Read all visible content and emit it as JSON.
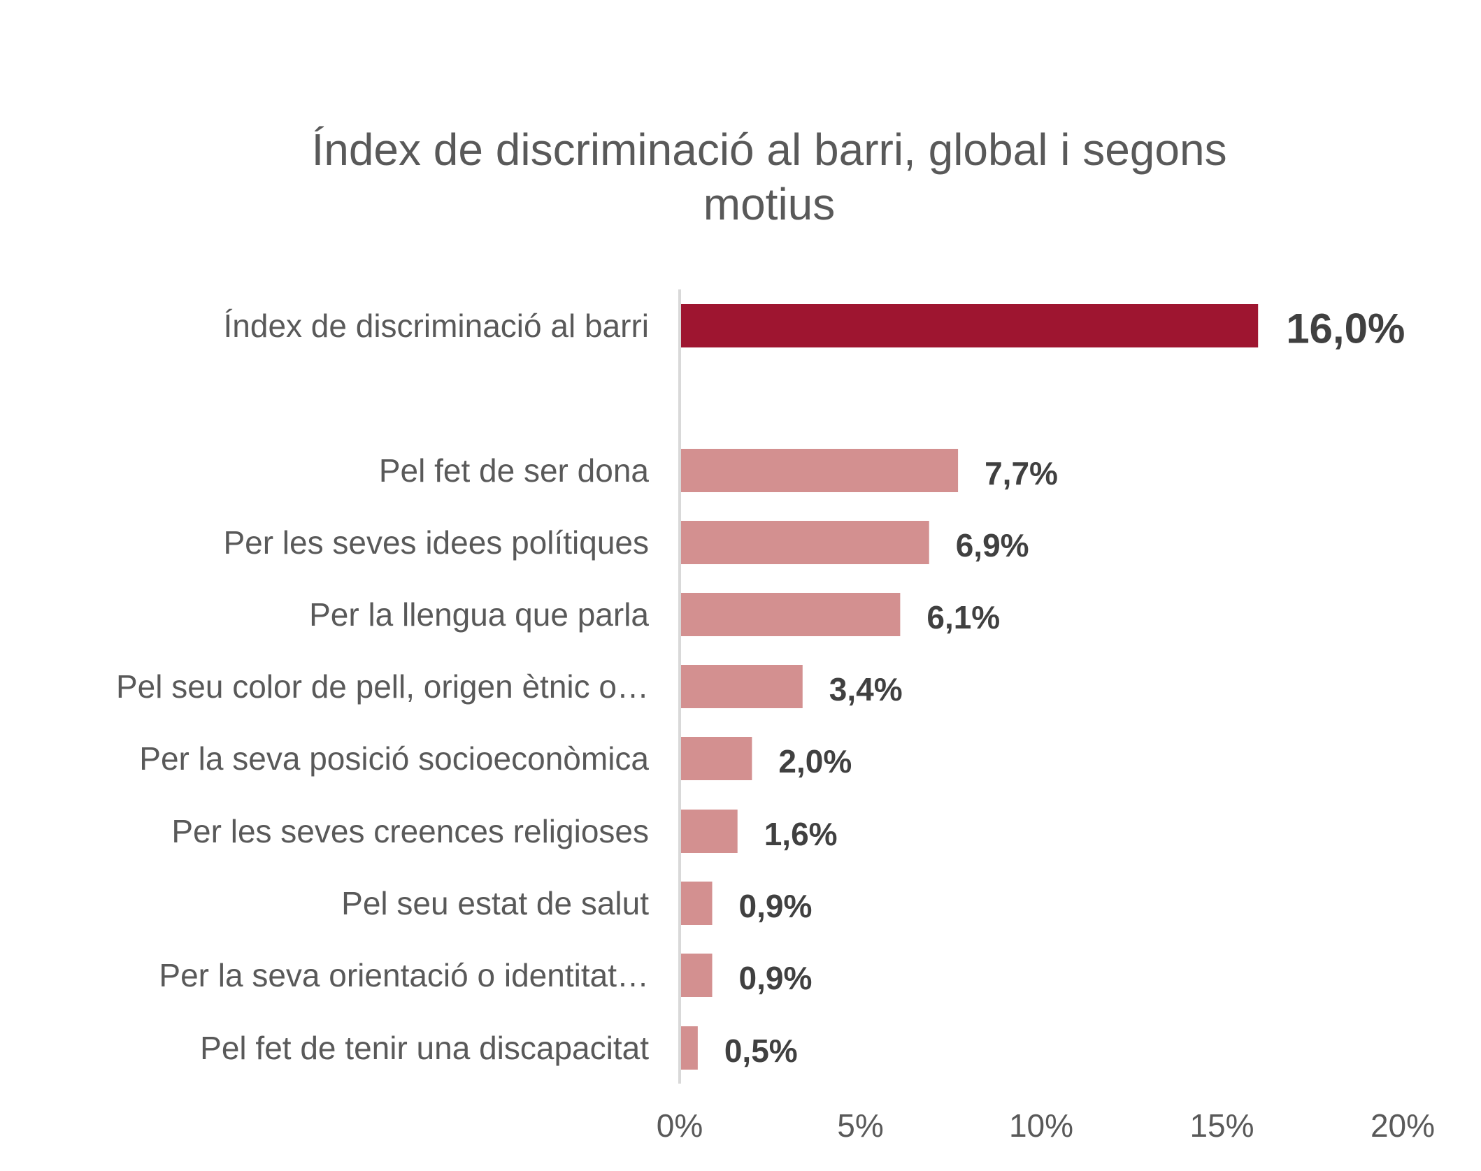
{
  "chart_data": {
    "type": "bar",
    "orientation": "horizontal",
    "title": [
      "Índex de discriminació al barri, global i segons",
      "motius"
    ],
    "categories": [
      "Índex de discriminació al barri",
      "Pel fet de ser dona",
      "Per les seves idees polítiques",
      "Per la llengua que parla",
      "Pel seu color de pell, origen ètnic o…",
      "Per la seva posició socioeconòmica",
      "Per les seves creences religioses",
      "Pel seu estat de salut",
      "Per la seva orientació o identitat…",
      "Pel fet de tenir una discapacitat"
    ],
    "values": [
      16.0,
      7.7,
      6.9,
      6.1,
      3.4,
      2.0,
      1.6,
      0.9,
      0.9,
      0.5
    ],
    "value_labels": [
      "16,0%",
      "7,7%",
      "6,9%",
      "6,1%",
      "3,4%",
      "2,0%",
      "1,6%",
      "0,9%",
      "0,9%",
      "0,5%"
    ],
    "xlim": [
      0,
      20
    ],
    "x_ticks": [
      0,
      5,
      10,
      15,
      20
    ],
    "x_tick_labels": [
      "0%",
      "5%",
      "10%",
      "15%",
      "20%"
    ],
    "grid": false,
    "legend": "none",
    "colors": {
      "highlight": "#9e1530",
      "bars": "#d39090",
      "text": "#595959",
      "value_text": "#404040",
      "axis": "#d9d9d9"
    }
  }
}
